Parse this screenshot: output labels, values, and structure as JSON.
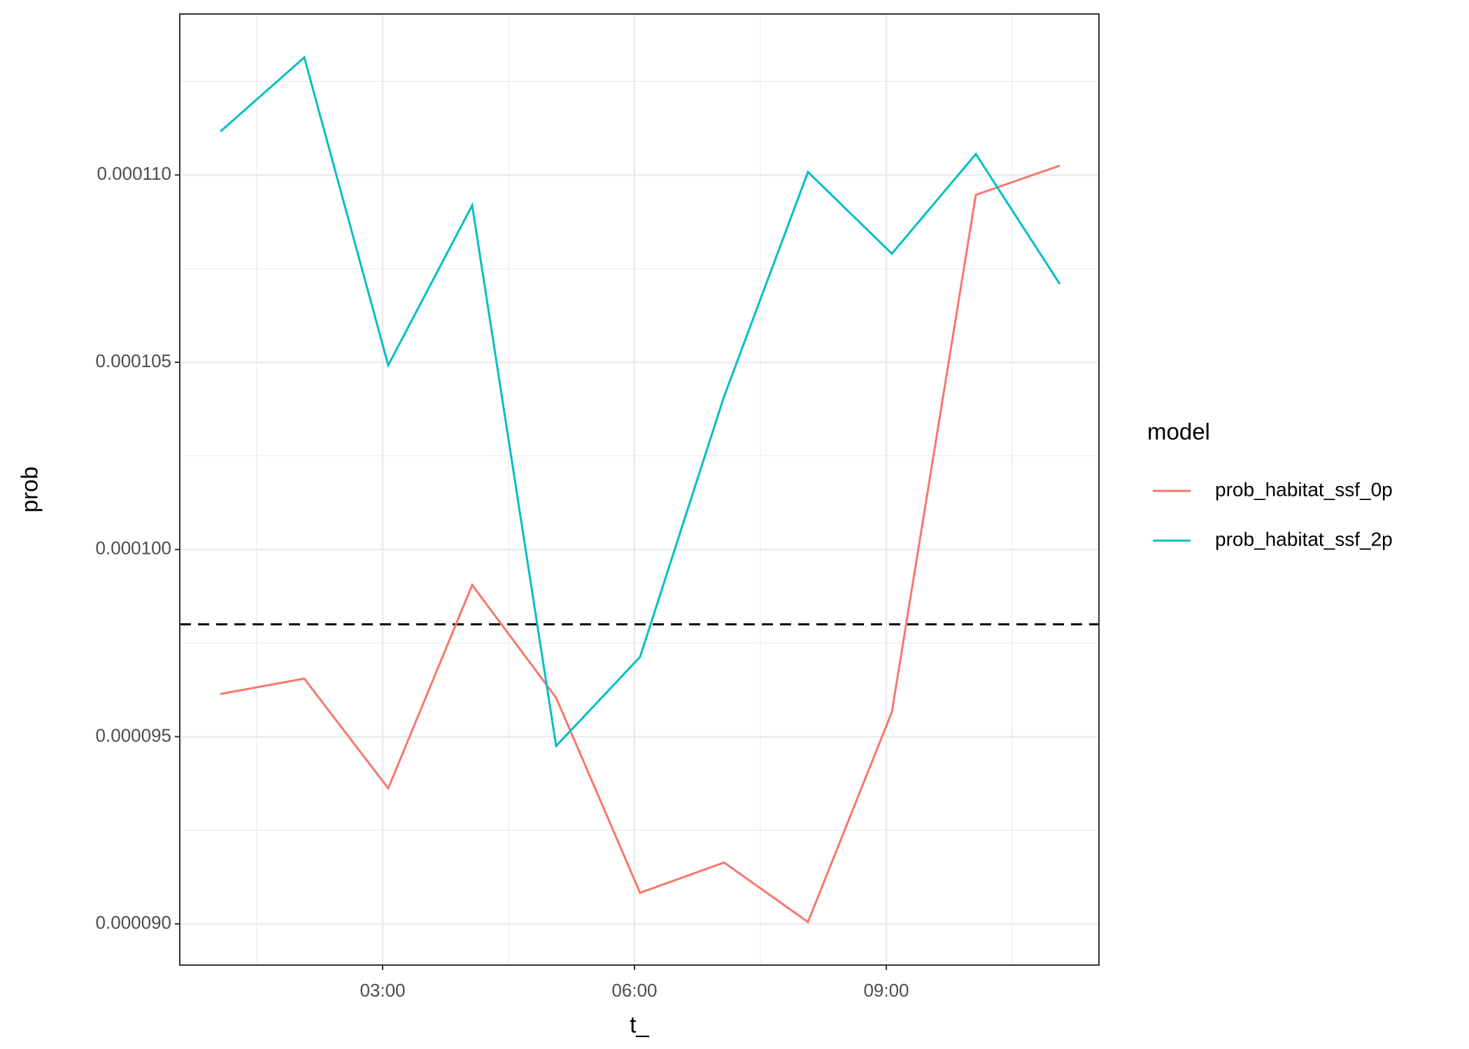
{
  "chart_data": {
    "type": "line",
    "x_label": "t_",
    "y_label": "prob",
    "legend_title": "model",
    "legend_position": "right",
    "x": [
      "01:04",
      "02:04",
      "03:04",
      "04:04",
      "05:04",
      "06:04",
      "07:04",
      "08:04",
      "09:04",
      "10:04",
      "11:04"
    ],
    "series": [
      {
        "name": "prob_habitat_ssf_0p",
        "color": "#F8766D",
        "values": [
          9.614e-05,
          9.655e-05,
          9.362e-05,
          9.905e-05,
          9.604e-05,
          9.083e-05,
          9.164e-05,
          9.005e-05,
          9.566e-05,
          0.00010947,
          0.00011025
        ]
      },
      {
        "name": "prob_habitat_ssf_2p",
        "color": "#00BFC4",
        "values": [
          0.00011116,
          0.00011314,
          0.00010492,
          0.00010919,
          9.475e-05,
          9.713e-05,
          0.00010408,
          0.00011008,
          0.0001079,
          0.00011056,
          0.00010709
        ]
      }
    ],
    "hline": {
      "value": 9.8e-05,
      "color": "#000000",
      "dash": true
    },
    "xlim": [
      "00:35",
      "11:32"
    ],
    "xticks": [
      "03:00",
      "06:00",
      "09:00"
    ],
    "x_minor_ticks": [
      "01:30",
      "04:30",
      "07:30",
      "10:30"
    ],
    "ylim": [
      8.89e-05,
      0.0001143
    ],
    "yticks": [
      {
        "value": 9e-05,
        "label": "0.000090"
      },
      {
        "value": 9.5e-05,
        "label": "0.000095"
      },
      {
        "value": 0.0001,
        "label": "0.000100"
      },
      {
        "value": 0.000105,
        "label": "0.000105"
      },
      {
        "value": 0.00011,
        "label": "0.000110"
      }
    ],
    "y_minor_ticks": [
      9.25e-05,
      9.75e-05,
      0.0001025,
      0.0001075,
      0.0001125
    ],
    "grid": true
  }
}
